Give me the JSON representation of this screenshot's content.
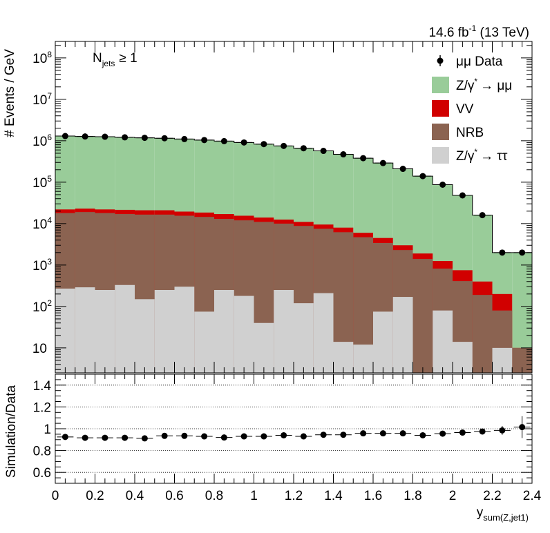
{
  "header": {
    "lumi_main": "14.6 fb",
    "lumi_sup": "-1",
    "lumi_tail": " (13 TeV)",
    "selection_main": "N",
    "selection_sub": "jets",
    "selection_tail": "≥ 1"
  },
  "legend": {
    "data": "μμ Data",
    "zmm_main": "Z/γ",
    "zmm_sup": "*",
    "zmm_tail": "→ μμ",
    "vv": "VV",
    "nrb": "NRB",
    "ztt_main": "Z/γ",
    "ztt_sup": "*",
    "ztt_tail": "→ ττ"
  },
  "colors": {
    "zmm": "#99cc99",
    "vv": "#d10000",
    "nrb": "#8b6351",
    "ztt": "#d0d0d0",
    "data": "#000000"
  },
  "chart_data": [
    {
      "type": "bar",
      "stacked": true,
      "ylog": true,
      "xlim": [
        0,
        2.4
      ],
      "ylim": [
        2.5,
        250000000
      ],
      "ylabel": "# Events / GeV",
      "x_ticks": [
        0,
        0.2,
        0.4,
        0.6,
        0.8,
        1,
        1.2,
        1.4,
        1.6,
        1.8,
        2,
        2.2,
        2.4
      ],
      "y_ticks": [
        10,
        100,
        1000,
        10000,
        100000,
        1000000,
        10000000,
        100000000
      ],
      "y_tick_labels": [
        {
          "main": "10",
          "sup": ""
        },
        {
          "main": "10",
          "sup": "2"
        },
        {
          "main": "10",
          "sup": "3"
        },
        {
          "main": "10",
          "sup": "4"
        },
        {
          "main": "10",
          "sup": "5"
        },
        {
          "main": "10",
          "sup": "6"
        },
        {
          "main": "10",
          "sup": "7"
        },
        {
          "main": "10",
          "sup": "8"
        }
      ],
      "bin_edges": [
        0,
        0.1,
        0.2,
        0.3,
        0.4,
        0.5,
        0.6,
        0.7,
        0.8,
        0.9,
        1.0,
        1.1,
        1.2,
        1.3,
        1.4,
        1.5,
        1.6,
        1.7,
        1.8,
        1.9,
        2.0,
        2.1,
        2.2,
        2.3,
        2.4
      ],
      "x_centers": [
        0.05,
        0.15,
        0.25,
        0.35,
        0.45,
        0.55,
        0.65,
        0.75,
        0.85,
        0.95,
        1.05,
        1.15,
        1.25,
        1.35,
        1.45,
        1.55,
        1.65,
        1.75,
        1.85,
        1.95,
        2.05,
        2.15,
        2.25,
        2.35
      ],
      "stack_totals": {
        "ztt": [
          270,
          290,
          250,
          330,
          150,
          250,
          300,
          75,
          250,
          180,
          40,
          250,
          120,
          210,
          14,
          12,
          75,
          170,
          0,
          80,
          14,
          0,
          10,
          0
        ],
        "nrb": [
          18000,
          19000,
          18000,
          17000,
          16500,
          16500,
          15500,
          14500,
          13000,
          12000,
          11000,
          10000,
          8800,
          7500,
          6200,
          4700,
          3400,
          2300,
          1400,
          820,
          410,
          190,
          80,
          10
        ],
        "vv": [
          22000,
          23000,
          22000,
          21500,
          21000,
          21000,
          19500,
          18500,
          17000,
          15500,
          14000,
          12500,
          11000,
          9500,
          8000,
          6000,
          4500,
          3000,
          1900,
          1250,
          750,
          400,
          200,
          10
        ],
        "zmm": [
          1300000,
          1270000,
          1250000,
          1210000,
          1180000,
          1150000,
          1100000,
          1040000,
          980000,
          910000,
          830000,
          750000,
          660000,
          570000,
          470000,
          380000,
          290000,
          210000,
          140000,
          87000,
          48000,
          16000,
          2000,
          2000
        ]
      },
      "series": [
        {
          "name": "μμ Data",
          "values": [
            1300000,
            1270000,
            1250000,
            1210000,
            1180000,
            1150000,
            1100000,
            1040000,
            980000,
            910000,
            830000,
            750000,
            660000,
            570000,
            470000,
            380000,
            290000,
            210000,
            140000,
            87000,
            48000,
            16000,
            2000,
            2000
          ]
        }
      ]
    },
    {
      "type": "scatter",
      "xlim": [
        0,
        2.4
      ],
      "ylim": [
        0.5,
        1.5
      ],
      "xlabel_main": "y",
      "xlabel_sub": "sum(Z,jet1)",
      "ylabel": "Simulation/Data",
      "x_ticks": [
        0,
        0.2,
        0.4,
        0.6,
        0.8,
        1,
        1.2,
        1.4,
        1.6,
        1.8,
        2,
        2.2,
        2.4
      ],
      "x_tick_labels": [
        "0",
        "0.2",
        "0.4",
        "0.6",
        "0.8",
        "1",
        "1.2",
        "1.4",
        "1.6",
        "1.8",
        "2",
        "2.2",
        "2.4"
      ],
      "y_ticks": [
        0.6,
        0.8,
        1,
        1.2,
        1.4
      ],
      "y_tick_labels": [
        "0.6",
        "0.8",
        "1",
        "1.2",
        "1.4"
      ],
      "x": [
        0.05,
        0.15,
        0.25,
        0.35,
        0.45,
        0.55,
        0.65,
        0.75,
        0.85,
        0.95,
        1.05,
        1.15,
        1.25,
        1.35,
        1.45,
        1.55,
        1.65,
        1.75,
        1.85,
        1.95,
        2.05,
        2.15,
        2.25,
        2.35
      ],
      "y": [
        0.925,
        0.917,
        0.917,
        0.917,
        0.912,
        0.935,
        0.935,
        0.93,
        0.92,
        0.93,
        0.93,
        0.94,
        0.93,
        0.945,
        0.945,
        0.958,
        0.958,
        0.958,
        0.94,
        0.955,
        0.965,
        0.975,
        0.985,
        1.015
      ],
      "y_err": [
        0.003,
        0.003,
        0.003,
        0.003,
        0.003,
        0.003,
        0.003,
        0.003,
        0.003,
        0.003,
        0.003,
        0.003,
        0.003,
        0.004,
        0.004,
        0.004,
        0.005,
        0.005,
        0.006,
        0.007,
        0.01,
        0.015,
        0.04,
        0.1
      ]
    }
  ]
}
